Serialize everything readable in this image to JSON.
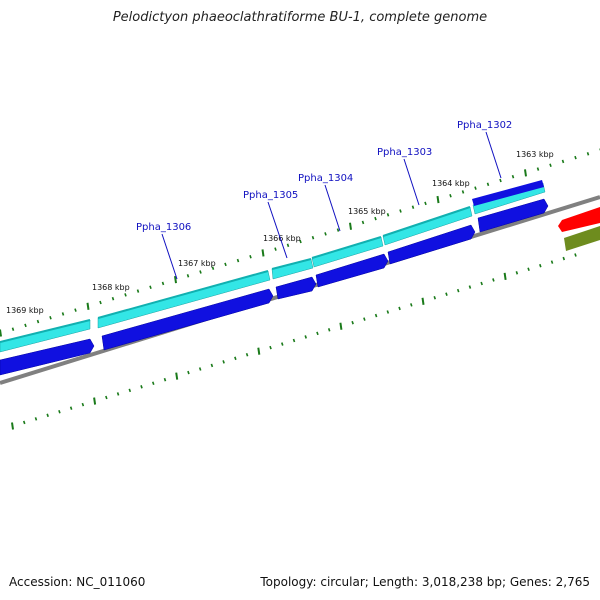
{
  "header": {
    "title": "Pelodictyon phaeoclathratiforme BU-1, complete genome"
  },
  "footer": {
    "accession": "Accession: NC_011060",
    "summary": "Topology: circular; Length: 3,018,238 bp; Genes: 2,765"
  },
  "colors": {
    "backbone": "#808080",
    "tick": "#1a7a1a",
    "gene_label": "#1010c0",
    "cds_light": "#33e6e6",
    "cds_dark": "#1010e0",
    "feature_red": "#ff0000",
    "feature_olive": "#6e8c1e"
  },
  "kbp_labels": [
    "1369 kbp",
    "1368 kbp",
    "1367 kbp",
    "1366 kbp",
    "1365 kbp",
    "1364 kbp",
    "1363 kbp"
  ],
  "genes": [
    "Ppha_1306",
    "Ppha_1305",
    "Ppha_1304",
    "Ppha_1303",
    "Ppha_1302"
  ]
}
